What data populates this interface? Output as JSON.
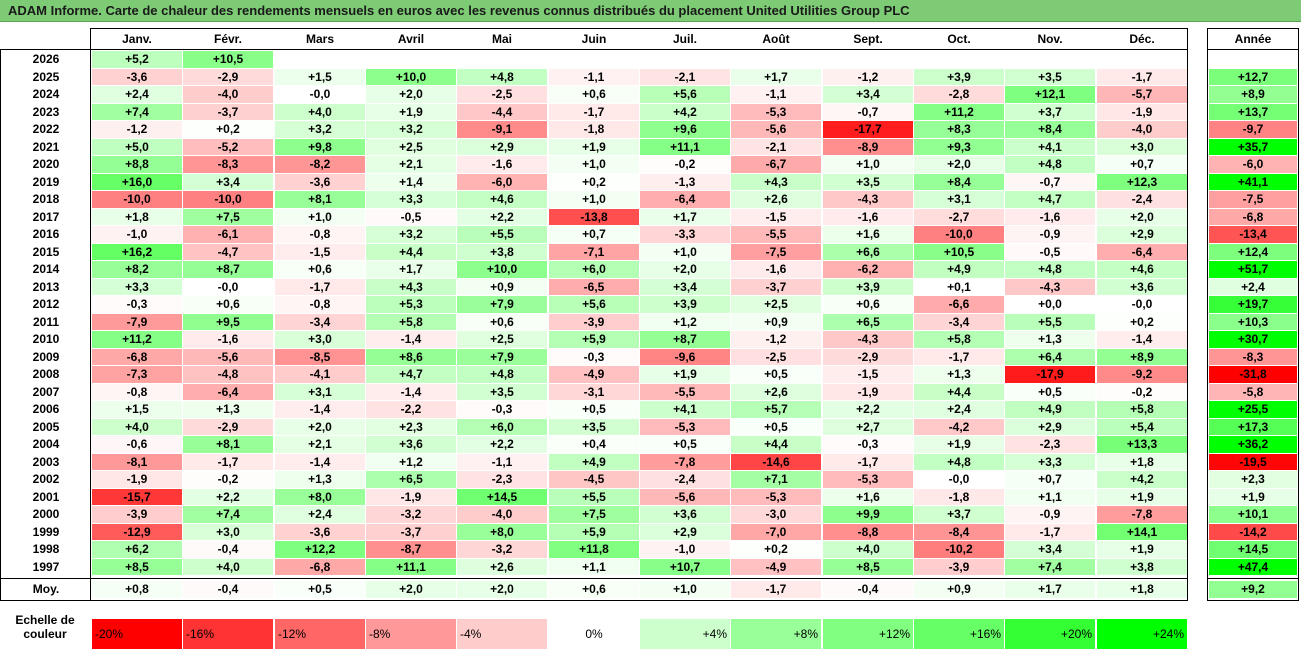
{
  "title": "ADAM Informe. Carte de chaleur des rendements mensuels en euros avec les revenus connus distribués du placement United Utilities Group PLC",
  "chart_data": {
    "type": "heatmap",
    "columns": [
      "Janv.",
      "Févr.",
      "Mars",
      "Avril",
      "Mai",
      "Juin",
      "Juil.",
      "Août",
      "Sept.",
      "Oct.",
      "Nov.",
      "Déc."
    ],
    "year_column_label": "Année",
    "rows": [
      {
        "year": "2026",
        "values": [
          "+5,2",
          "+10,5",
          "",
          "",
          "",
          "",
          "",
          "",
          "",
          "",
          "",
          ""
        ],
        "annual": ""
      },
      {
        "year": "2025",
        "values": [
          "-3,6",
          "-2,9",
          "+1,5",
          "+10,0",
          "+4,8",
          "-1,1",
          "-2,1",
          "+1,7",
          "-1,2",
          "+3,9",
          "+3,5",
          "-1,7"
        ],
        "annual": "+12,7"
      },
      {
        "year": "2024",
        "values": [
          "+2,4",
          "-4,0",
          "-0,0",
          "+2,0",
          "-2,5",
          "+0,6",
          "+5,6",
          "-1,1",
          "+3,4",
          "-2,8",
          "+12,1",
          "-5,7"
        ],
        "annual": "+8,9"
      },
      {
        "year": "2023",
        "values": [
          "+7,4",
          "-3,7",
          "+4,0",
          "+1,9",
          "-4,4",
          "-1,7",
          "+4,2",
          "-5,3",
          "-0,7",
          "+11,2",
          "+3,7",
          "-1,9"
        ],
        "annual": "+13,7"
      },
      {
        "year": "2022",
        "values": [
          "-1,2",
          "+0,2",
          "+3,2",
          "+3,2",
          "-9,1",
          "-1,8",
          "+9,6",
          "-5,6",
          "-17,7",
          "+8,3",
          "+8,4",
          "-4,0"
        ],
        "annual": "-9,7"
      },
      {
        "year": "2021",
        "values": [
          "+5,0",
          "-5,2",
          "+9,8",
          "+2,5",
          "+2,9",
          "+1,9",
          "+11,1",
          "-2,1",
          "-8,9",
          "+9,3",
          "+4,1",
          "+3,0"
        ],
        "annual": "+35,7"
      },
      {
        "year": "2020",
        "values": [
          "+8,8",
          "-8,3",
          "-8,2",
          "+2,1",
          "-1,6",
          "+1,0",
          "-0,2",
          "-6,7",
          "+1,0",
          "+2,0",
          "+4,8",
          "+0,7"
        ],
        "annual": "-6,0"
      },
      {
        "year": "2019",
        "values": [
          "+16,0",
          "+3,4",
          "-3,6",
          "+1,4",
          "-6,0",
          "+0,2",
          "-1,3",
          "+4,3",
          "+3,5",
          "+8,4",
          "-0,7",
          "+12,3"
        ],
        "annual": "+41,1"
      },
      {
        "year": "2018",
        "values": [
          "-10,0",
          "-10,0",
          "+8,1",
          "+3,3",
          "+4,6",
          "+1,0",
          "-6,4",
          "+2,6",
          "-4,3",
          "+3,1",
          "+4,7",
          "-2,4"
        ],
        "annual": "-7,5"
      },
      {
        "year": "2017",
        "values": [
          "+1,8",
          "+7,5",
          "+1,0",
          "-0,5",
          "+2,2",
          "-13,8",
          "+1,7",
          "-1,5",
          "-1,6",
          "-2,7",
          "-1,6",
          "+2,0"
        ],
        "annual": "-6,8"
      },
      {
        "year": "2016",
        "values": [
          "-1,0",
          "-6,1",
          "-0,8",
          "+3,2",
          "+5,5",
          "+0,7",
          "-3,3",
          "-5,5",
          "+1,6",
          "-10,0",
          "-0,9",
          "+2,9"
        ],
        "annual": "-13,4"
      },
      {
        "year": "2015",
        "values": [
          "+16,2",
          "-4,7",
          "-1,5",
          "+4,4",
          "+3,8",
          "-7,1",
          "+1,0",
          "-7,5",
          "+6,6",
          "+10,5",
          "-0,5",
          "-6,4"
        ],
        "annual": "+12,4"
      },
      {
        "year": "2014",
        "values": [
          "+8,2",
          "+8,7",
          "+0,6",
          "+1,7",
          "+10,0",
          "+6,0",
          "+2,0",
          "-1,6",
          "-6,2",
          "+4,9",
          "+4,8",
          "+4,6"
        ],
        "annual": "+51,7"
      },
      {
        "year": "2013",
        "values": [
          "+3,3",
          "-0,0",
          "-1,7",
          "+4,3",
          "+0,9",
          "-6,5",
          "+3,4",
          "-3,7",
          "+3,9",
          "+0,1",
          "-4,3",
          "+3,6"
        ],
        "annual": "+2,4"
      },
      {
        "year": "2012",
        "values": [
          "-0,3",
          "+0,6",
          "-0,8",
          "+5,3",
          "+7,9",
          "+5,6",
          "+3,9",
          "+2,5",
          "+0,6",
          "-6,6",
          "+0,0",
          "-0,0"
        ],
        "annual": "+19,7"
      },
      {
        "year": "2011",
        "values": [
          "-7,9",
          "+9,5",
          "-3,4",
          "+5,8",
          "+0,6",
          "-3,9",
          "+1,2",
          "+0,9",
          "+6,5",
          "-3,4",
          "+5,5",
          "+0,2"
        ],
        "annual": "+10,3"
      },
      {
        "year": "2010",
        "values": [
          "+11,2",
          "-1,6",
          "+3,0",
          "-1,4",
          "+2,5",
          "+5,9",
          "+8,7",
          "-1,2",
          "-4,3",
          "+5,8",
          "+1,3",
          "-1,4"
        ],
        "annual": "+30,7"
      },
      {
        "year": "2009",
        "values": [
          "-6,8",
          "-5,6",
          "-8,5",
          "+8,6",
          "+7,9",
          "-0,3",
          "-9,6",
          "-2,5",
          "-2,9",
          "-1,7",
          "+6,4",
          "+8,9"
        ],
        "annual": "-8,3"
      },
      {
        "year": "2008",
        "values": [
          "-7,3",
          "-4,8",
          "-4,1",
          "+4,7",
          "+4,8",
          "-4,9",
          "+1,9",
          "+0,5",
          "-1,5",
          "+1,3",
          "-17,9",
          "-9,2"
        ],
        "annual": "-31,8"
      },
      {
        "year": "2007",
        "values": [
          "-0,8",
          "-6,4",
          "+3,1",
          "-1,4",
          "+3,5",
          "-3,1",
          "-5,5",
          "+2,6",
          "-1,9",
          "+4,4",
          "+0,5",
          "-0,2"
        ],
        "annual": "-5,8"
      },
      {
        "year": "2006",
        "values": [
          "+1,5",
          "+1,3",
          "-1,4",
          "-2,2",
          "-0,3",
          "+0,5",
          "+4,1",
          "+5,7",
          "+2,2",
          "+2,4",
          "+4,9",
          "+5,8"
        ],
        "annual": "+25,5"
      },
      {
        "year": "2005",
        "values": [
          "+4,0",
          "-2,9",
          "+2,0",
          "+2,3",
          "+6,0",
          "+3,5",
          "-5,3",
          "+0,5",
          "+2,7",
          "-4,2",
          "+2,9",
          "+5,4"
        ],
        "annual": "+17,3"
      },
      {
        "year": "2004",
        "values": [
          "-0,6",
          "+8,1",
          "+2,1",
          "+3,6",
          "+2,2",
          "+0,4",
          "+0,5",
          "+4,4",
          "-0,3",
          "+1,9",
          "-2,3",
          "+13,3"
        ],
        "annual": "+36,2"
      },
      {
        "year": "2003",
        "values": [
          "-8,1",
          "-1,7",
          "-1,4",
          "+1,2",
          "-1,1",
          "+4,9",
          "-7,8",
          "-14,6",
          "-1,7",
          "+4,8",
          "+3,3",
          "+1,8"
        ],
        "annual": "-19,5"
      },
      {
        "year": "2002",
        "values": [
          "-1,9",
          "-0,2",
          "+1,3",
          "+6,5",
          "-2,3",
          "-4,5",
          "-2,4",
          "+7,1",
          "-5,3",
          "-0,0",
          "+0,7",
          "+4,2"
        ],
        "annual": "+2,3"
      },
      {
        "year": "2001",
        "values": [
          "-15,7",
          "+2,2",
          "+8,0",
          "-1,9",
          "+14,5",
          "+5,5",
          "-5,6",
          "-5,3",
          "+1,6",
          "-1,8",
          "+1,1",
          "+1,9"
        ],
        "annual": "+1,9"
      },
      {
        "year": "2000",
        "values": [
          "-3,9",
          "+7,4",
          "+2,4",
          "-3,2",
          "-4,0",
          "+7,5",
          "+3,6",
          "-3,0",
          "+9,9",
          "+3,7",
          "-0,9",
          "-7,8"
        ],
        "annual": "+10,1"
      },
      {
        "year": "1999",
        "values": [
          "-12,9",
          "+3,0",
          "-3,6",
          "-3,7",
          "+8,0",
          "+5,9",
          "+2,9",
          "-7,0",
          "-8,8",
          "-8,4",
          "-1,7",
          "+14,1"
        ],
        "annual": "-14,2"
      },
      {
        "year": "1998",
        "values": [
          "+6,2",
          "-0,4",
          "+12,2",
          "-8,7",
          "-3,2",
          "+11,8",
          "-1,0",
          "+0,2",
          "+4,0",
          "-10,2",
          "+3,4",
          "+1,9"
        ],
        "annual": "+14,5"
      },
      {
        "year": "1997",
        "values": [
          "+8,5",
          "+4,0",
          "-6,8",
          "+11,1",
          "+2,6",
          "+1,1",
          "+10,7",
          "-4,9",
          "+8,5",
          "-3,9",
          "+7,4",
          "+3,8"
        ],
        "annual": "+47,4"
      }
    ],
    "average": {
      "label": "Moy.",
      "values": [
        "+0,8",
        "-0,4",
        "+0,5",
        "+2,0",
        "+2,0",
        "+0,6",
        "+1,0",
        "-1,7",
        "-0,4",
        "+0,9",
        "+1,7",
        "+1,8"
      ],
      "annual": "+9,2"
    },
    "color_scale": {
      "label": "Echelle de couleur",
      "stops": [
        {
          "label": "-20%",
          "value": -20,
          "color": "#ff0000"
        },
        {
          "label": "-16%",
          "value": -16,
          "color": "#ff3333"
        },
        {
          "label": "-12%",
          "value": -12,
          "color": "#ff6666"
        },
        {
          "label": "-8%",
          "value": -8,
          "color": "#ff9999"
        },
        {
          "label": "-4%",
          "value": -4,
          "color": "#ffcccc"
        },
        {
          "label": "0%",
          "value": 0,
          "color": "#ffffff"
        },
        {
          "label": "+4%",
          "value": 4,
          "color": "#ccffcc"
        },
        {
          "label": "+8%",
          "value": 8,
          "color": "#99ff99"
        },
        {
          "label": "+12%",
          "value": 12,
          "color": "#80ff80"
        },
        {
          "label": "+16%",
          "value": 16,
          "color": "#66ff66"
        },
        {
          "label": "+20%",
          "value": 20,
          "color": "#33ff33"
        },
        {
          "label": "+24%",
          "value": 24,
          "color": "#00ff00"
        }
      ]
    }
  }
}
